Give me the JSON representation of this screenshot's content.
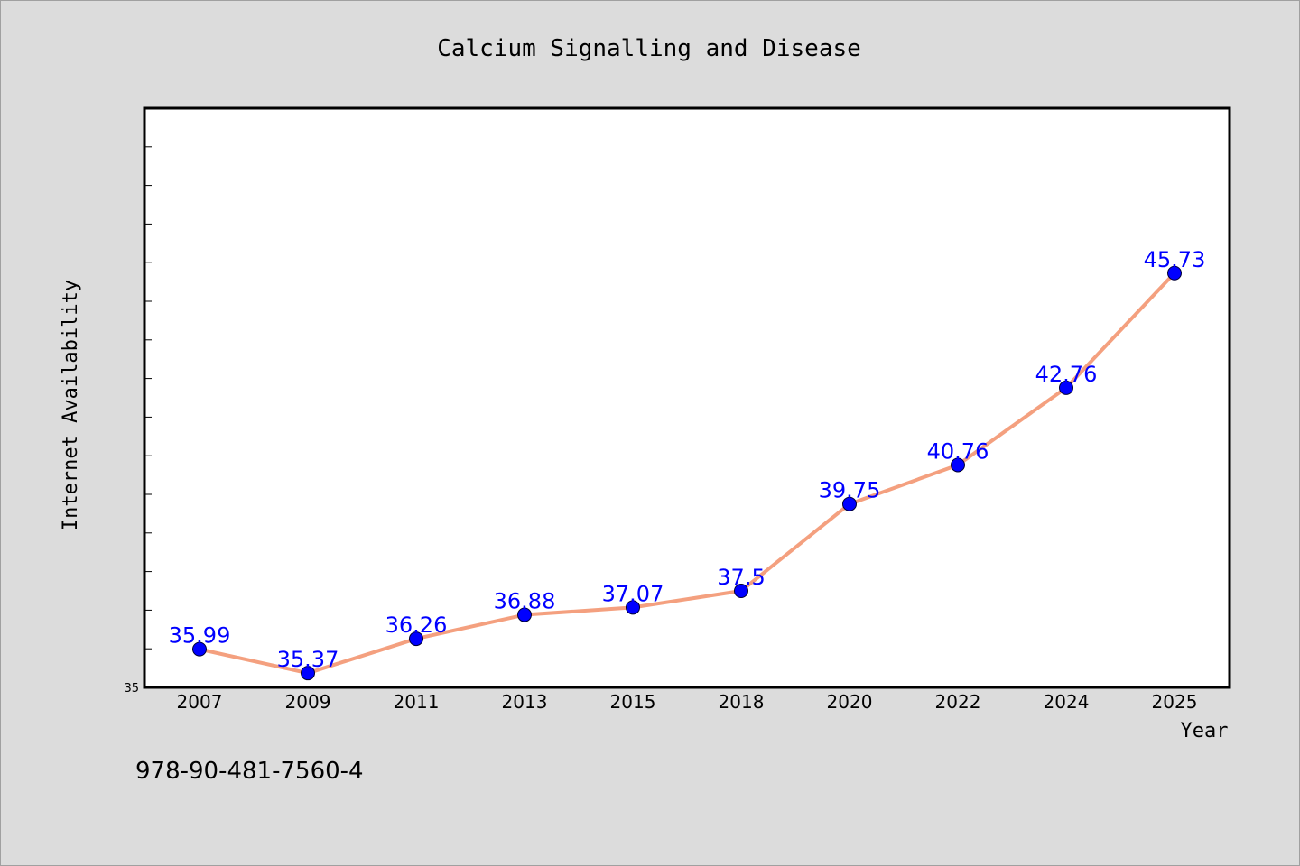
{
  "chart_data": {
    "type": "line",
    "title": "Calcium Signalling and Disease",
    "xlabel": "Year",
    "ylabel": "Internet Availability",
    "categories": [
      "2007",
      "2009",
      "2011",
      "2013",
      "2015",
      "2018",
      "2020",
      "2022",
      "2024",
      "2025"
    ],
    "values": [
      35.99,
      35.37,
      36.26,
      36.88,
      37.07,
      37.5,
      39.75,
      40.76,
      42.76,
      45.73
    ],
    "data_labels": [
      "35.99",
      "35.37",
      "36.26",
      "36.88",
      "37.07",
      "37.5",
      "39.75",
      "40.76",
      "42.76",
      "45.73"
    ],
    "ylim": [
      35,
      50
    ],
    "y_tick_labels": [
      "35"
    ],
    "grid": false,
    "legend": "none",
    "colors": {
      "line": "#f4a07f",
      "marker": "#0000ff",
      "data_label": "#0000ff",
      "background": "#dcdcdc",
      "plot_background": "#ffffff"
    }
  },
  "footer": {
    "isbn": "978-90-481-7560-4"
  }
}
